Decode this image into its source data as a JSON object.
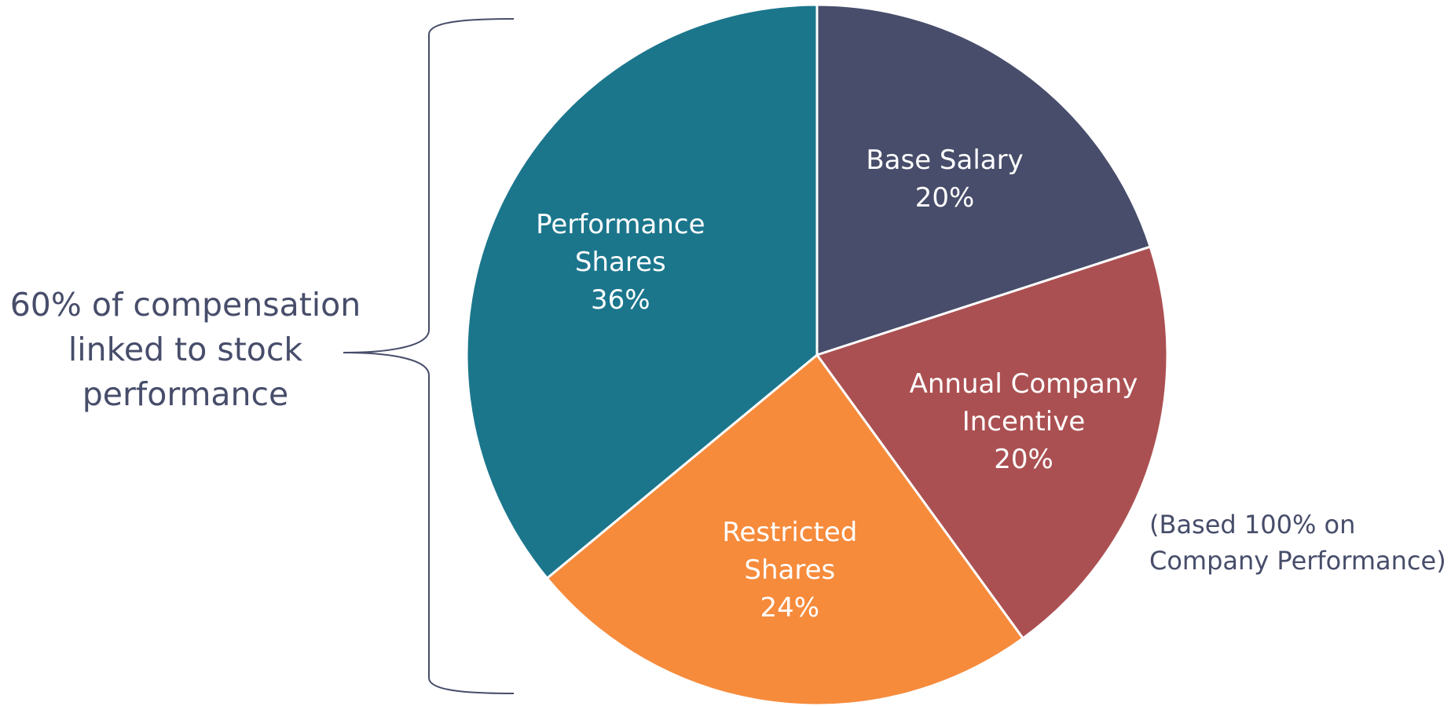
{
  "chart_data": {
    "type": "pie",
    "categories": [
      "Base Salary",
      "Annual Company Incentive",
      "Restricted Shares",
      "Performance Shares"
    ],
    "values": [
      20,
      20,
      24,
      36
    ],
    "value_labels": [
      "20%",
      "20%",
      "24%",
      "36%"
    ],
    "colors": [
      "#474d6a",
      "#ab5052",
      "#f68b3c",
      "#1b768c"
    ],
    "annotations": [
      "(Based 100% on Company Performance)",
      "60% of compensation linked to stock performance"
    ]
  }
}
